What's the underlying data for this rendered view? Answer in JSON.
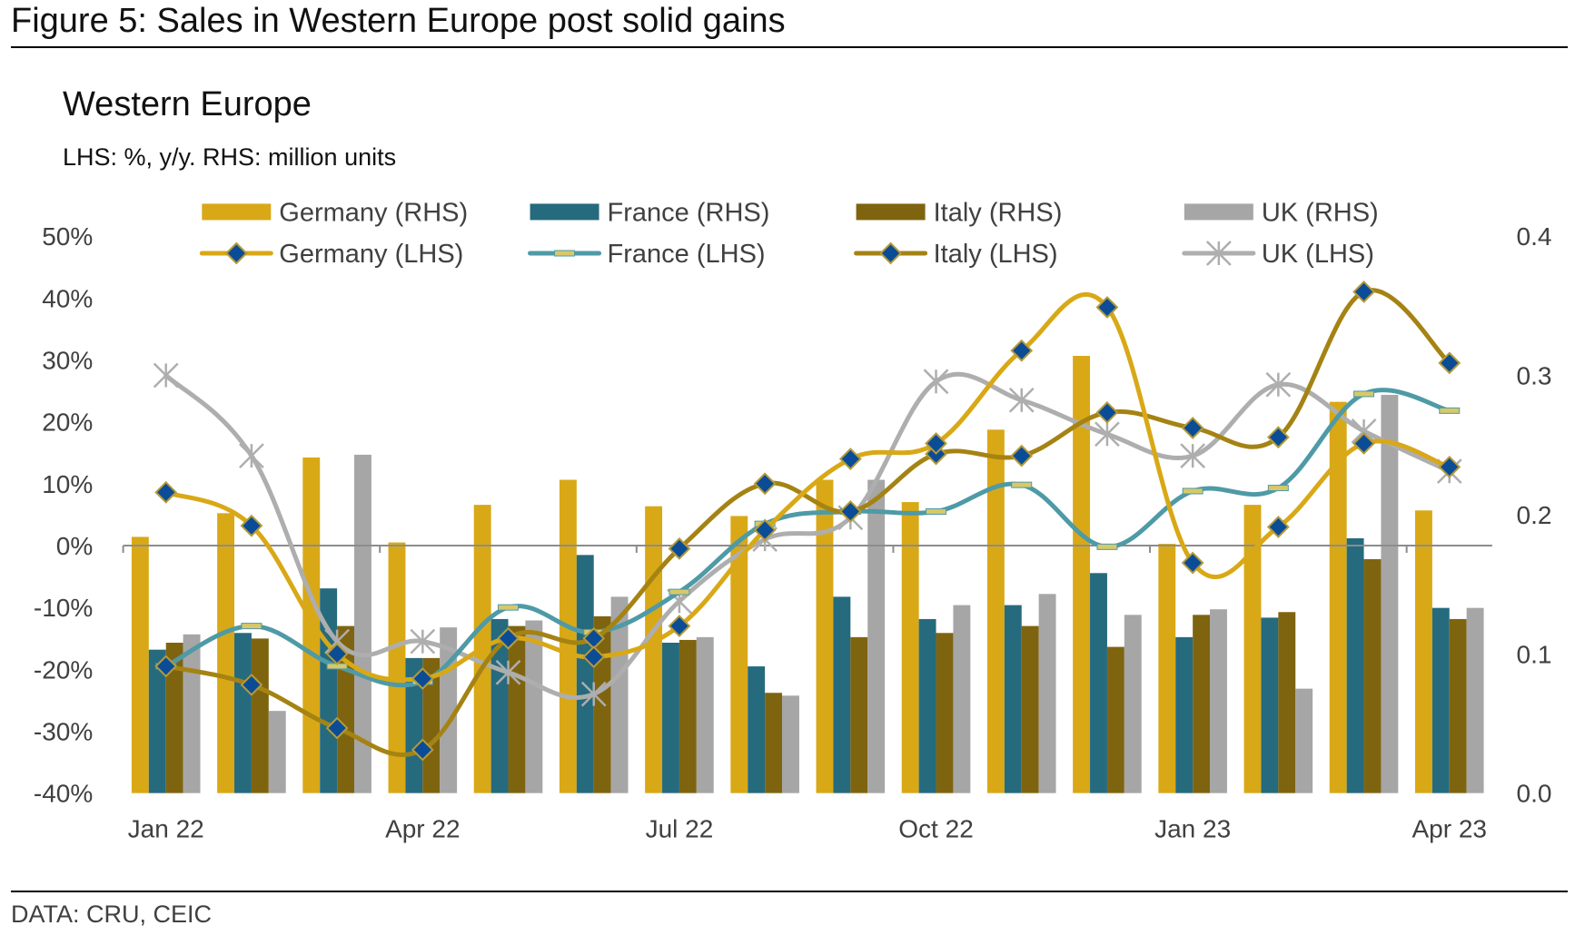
{
  "figure_title": "Figure 5: Sales in Western Europe post solid gains",
  "source": "DATA: CRU, CEIC",
  "chart_data": {
    "type": "bar+line (dual axis)",
    "title": "Western Europe",
    "subtitle": "LHS: %, y/y. RHS: million units",
    "categories": [
      "Jan 22",
      "Feb 22",
      "Mar 22",
      "Apr 22",
      "May 22",
      "Jun 22",
      "Jul 22",
      "Aug 22",
      "Sep 22",
      "Oct 22",
      "Nov 22",
      "Dec 22",
      "Jan 23",
      "Feb 23",
      "Mar 23",
      "Apr 23"
    ],
    "x_tick_labels": [
      "Jan 22",
      "Apr 22",
      "Jul 22",
      "Oct 22",
      "Jan 23",
      "Apr 23"
    ],
    "left_axis": {
      "label": "%, y/y",
      "range": [
        -40,
        50
      ],
      "ticks": [
        50,
        40,
        30,
        20,
        10,
        0,
        -10,
        -20,
        -30,
        -40
      ],
      "tick_labels": [
        "50%",
        "40%",
        "30%",
        "20%",
        "10%",
        "0%",
        "-10%",
        "-20%",
        "-30%",
        "-40%"
      ]
    },
    "right_axis": {
      "label": "million units",
      "range": [
        0,
        0.4
      ],
      "ticks": [
        0.4,
        0.3,
        0.2,
        0.1,
        0.0
      ],
      "tick_labels": [
        "0.4",
        "0.3",
        "0.2",
        "0.1",
        "0.0"
      ]
    },
    "legend_position": "top",
    "bar_series": [
      {
        "name": "Germany (RHS)",
        "color": "#D9A816",
        "values": [
          0.184,
          0.201,
          0.241,
          0.18,
          0.207,
          0.225,
          0.206,
          0.199,
          0.225,
          0.209,
          0.261,
          0.314,
          0.179,
          0.207,
          0.281,
          0.203
        ]
      },
      {
        "name": "France (RHS)",
        "color": "#266A7E",
        "values": [
          0.103,
          0.115,
          0.147,
          0.097,
          0.125,
          0.171,
          0.108,
          0.091,
          0.141,
          0.125,
          0.135,
          0.158,
          0.112,
          0.126,
          0.183,
          0.133
        ]
      },
      {
        "name": "Italy (RHS)",
        "color": "#7F6410",
        "values": [
          0.108,
          0.111,
          0.12,
          0.097,
          0.12,
          0.127,
          0.11,
          0.072,
          0.112,
          0.115,
          0.12,
          0.105,
          0.128,
          0.13,
          0.168,
          0.125
        ]
      },
      {
        "name": "UK (RHS)",
        "color": "#A6A6A6",
        "values": [
          0.114,
          0.059,
          0.243,
          0.119,
          0.124,
          0.141,
          0.112,
          0.07,
          0.225,
          0.135,
          0.143,
          0.128,
          0.132,
          0.075,
          0.286,
          0.133
        ]
      }
    ],
    "line_series": [
      {
        "name": "Germany (LHS)",
        "color": "#D9A816",
        "marker": "diamond",
        "values": [
          8.6,
          3.2,
          -17.5,
          -21.5,
          -15.0,
          -18.0,
          -13.0,
          2.5,
          14.0,
          16.5,
          31.5,
          38.5,
          -2.8,
          3.0,
          16.5,
          12.7
        ]
      },
      {
        "name": "France (LHS)",
        "color": "#4E9AA6",
        "marker": "dash",
        "values": [
          -19.5,
          -13.0,
          -19.5,
          -22.0,
          -10.0,
          -14.0,
          -7.5,
          3.5,
          5.5,
          5.5,
          9.8,
          -0.2,
          8.8,
          9.3,
          24.5,
          21.8
        ]
      },
      {
        "name": "Italy (LHS)",
        "color": "#A58313",
        "marker": "diamond",
        "values": [
          -19.5,
          -22.5,
          -29.5,
          -33.0,
          -15.0,
          -15.0,
          -0.5,
          10.0,
          5.5,
          14.8,
          14.5,
          21.5,
          19.0,
          17.5,
          41.0,
          29.5
        ]
      },
      {
        "name": "UK (LHS)",
        "color": "#AEAEAE",
        "marker": "star",
        "values": [
          27.5,
          14.5,
          -15.5,
          -15.5,
          -20.5,
          -24.0,
          -9.0,
          1.0,
          4.5,
          26.5,
          23.5,
          18.0,
          14.5,
          26.0,
          18.5,
          12.0
        ]
      }
    ],
    "marker_fill_color": "#0B4C96",
    "zero_line": true,
    "grid": false
  }
}
